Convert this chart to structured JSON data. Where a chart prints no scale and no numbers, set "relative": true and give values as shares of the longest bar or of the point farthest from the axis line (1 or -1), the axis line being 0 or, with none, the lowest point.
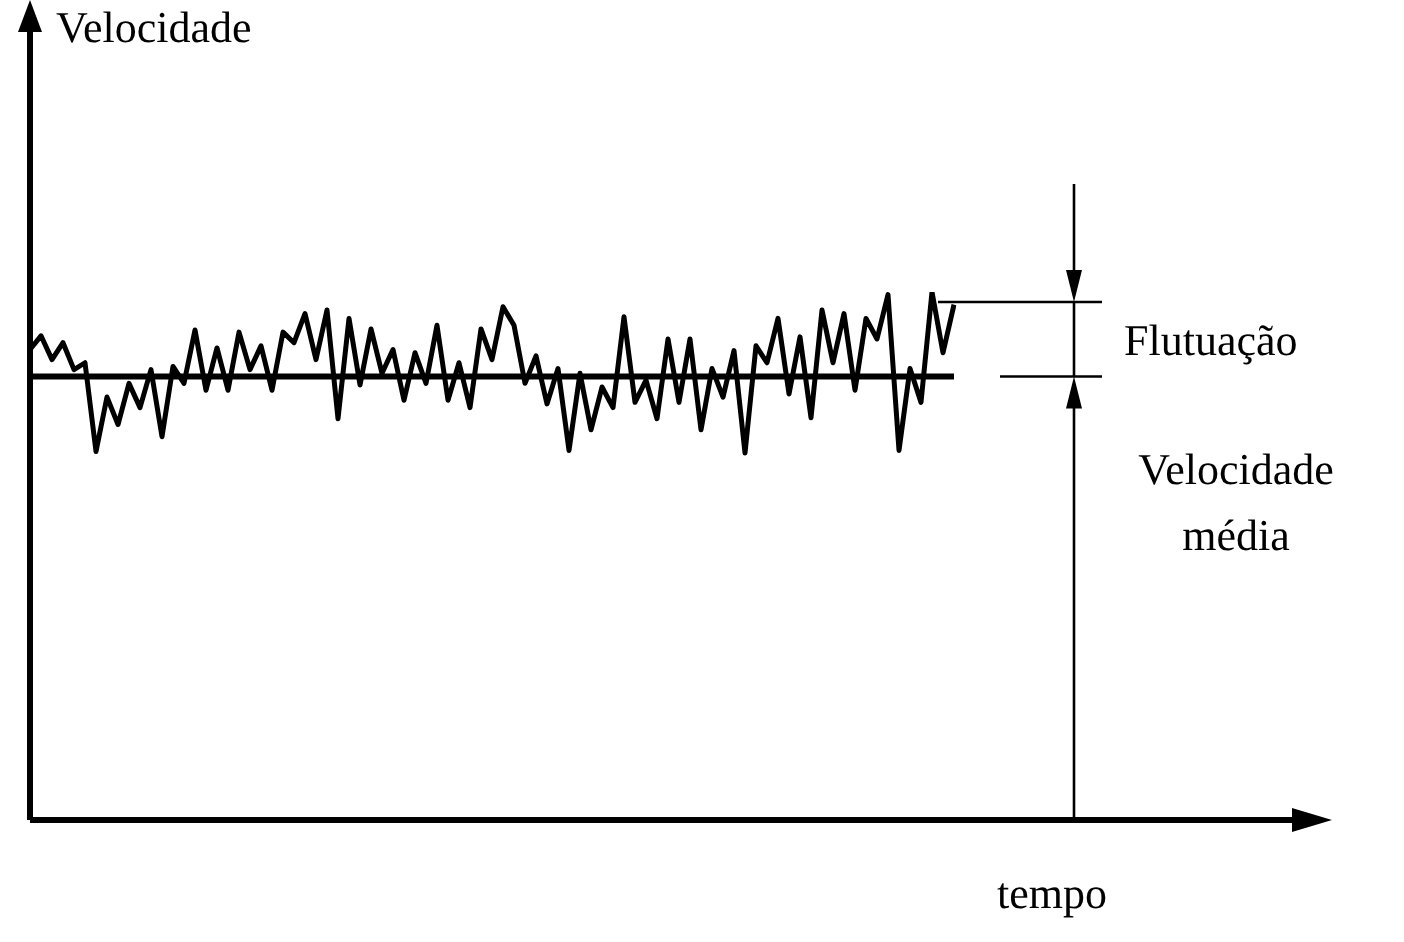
{
  "chart_data": {
    "type": "line",
    "relative": true,
    "xlabel": "tempo",
    "marker": "none",
    "line_style": "solid",
    "categories": [
      null,
      null,
      null,
      null,
      null,
      null,
      null,
      null,
      null,
      null,
      null,
      null,
      null,
      null,
      null,
      null,
      null,
      null,
      null,
      null,
      null,
      null,
      null,
      null,
      null,
      null,
      null,
      null,
      null,
      null,
      null,
      null,
      null,
      null,
      null,
      null,
      null,
      null,
      null,
      null,
      null,
      null,
      null,
      null,
      null,
      null,
      null,
      null,
      null,
      null,
      null,
      null,
      null,
      null,
      null,
      null,
      null,
      null,
      null,
      null,
      null,
      null,
      null,
      null,
      null,
      null,
      null,
      null,
      null,
      null,
      null,
      null,
      null,
      null,
      null,
      null,
      null,
      null,
      null,
      null,
      null,
      null,
      null,
      null,
      null
    ],
    "series": [
      {
        "color": "#000000",
        "values": [
          0.891,
          0.917,
          0.872,
          0.904,
          0.853,
          0.866,
          0.698,
          0.801,
          0.749,
          0.827,
          0.781,
          0.853,
          0.726,
          0.859,
          0.827,
          0.928,
          0.814,
          0.894,
          0.814,
          0.924,
          0.853,
          0.898,
          0.814,
          0.924,
          0.904,
          0.959,
          0.872,
          0.966,
          0.76,
          0.95,
          0.824,
          0.93,
          0.846,
          0.891,
          0.795,
          0.885,
          0.827,
          0.937,
          0.795,
          0.866,
          0.781,
          0.93,
          0.872,
          0.972,
          0.937,
          0.827,
          0.879,
          0.788,
          0.855,
          0.7,
          0.846,
          0.739,
          0.82,
          0.781,
          0.953,
          0.791,
          0.833,
          0.76,
          0.911,
          0.791,
          0.911,
          0.739,
          0.855,
          0.801,
          0.889,
          0.695,
          0.898,
          0.866,
          0.95,
          0.807,
          0.915,
          0.762,
          0.966,
          0.866,
          0.959,
          0.814,
          0.95,
          0.911,
          0.995,
          0.7,
          0.855,
          0.791,
          1.0,
          0.885,
          0.976
        ]
      }
    ],
    "ref_lines": [
      {
        "axis": "y",
        "value": 0.84,
        "label": "Velocidade média",
        "color": "#000000"
      }
    ],
    "annotations": [
      "Velocidade",
      "Flutuação"
    ]
  }
}
